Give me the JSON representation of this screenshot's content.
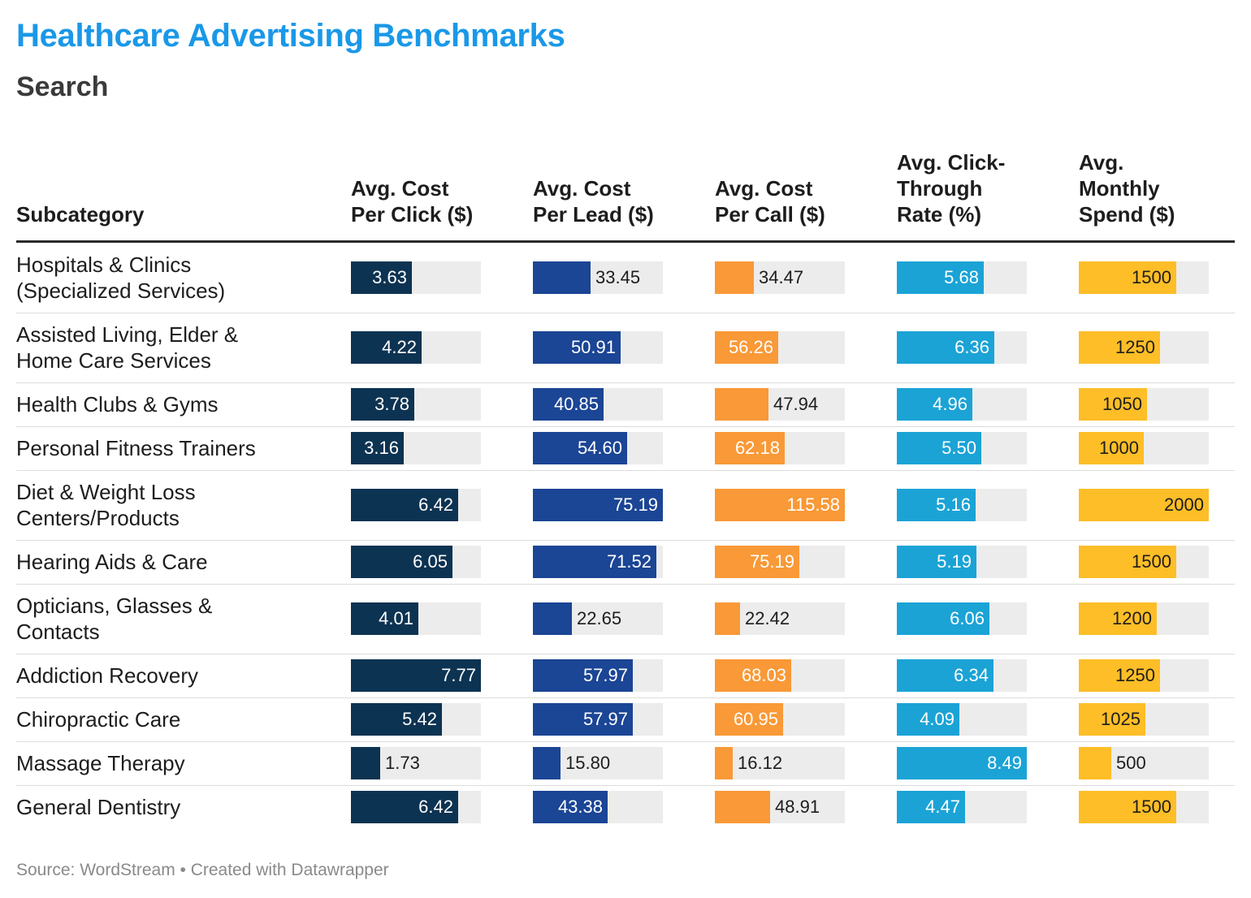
{
  "title": "Healthcare Advertising Benchmarks",
  "subtitle": "Search",
  "source": "Source: WordStream • Created with Datawrapper",
  "chart_data": {
    "type": "table",
    "row_header": "Subcategory",
    "columns": [
      {
        "key": "cpc",
        "label": "Avg. Cost\nPer Click ($)",
        "color": "#0d3352",
        "max": 7.77
      },
      {
        "key": "cpl",
        "label": "Avg. Cost\nPer Lead ($)",
        "color": "#1b4595",
        "max": 75.19
      },
      {
        "key": "cpcall",
        "label": "Avg. Cost\nPer Call ($)",
        "color": "#f99937",
        "max": 115.58
      },
      {
        "key": "ctr",
        "label": "Avg. Click-\nThrough\nRate (%)",
        "color": "#1ba3d6",
        "max": 8.49
      },
      {
        "key": "spend",
        "label": "Avg.\nMonthly\nSpend ($)",
        "color": "#fdbe27",
        "max": 2000
      }
    ],
    "rows": [
      {
        "label": "Hospitals & Clinics\n(Specialized Services)",
        "values": [
          "3.63",
          "33.45",
          "34.47",
          "5.68",
          "1500"
        ]
      },
      {
        "label": "Assisted Living, Elder &\nHome Care Services",
        "values": [
          "4.22",
          "50.91",
          "56.26",
          "6.36",
          "1250"
        ]
      },
      {
        "label": "Health Clubs & Gyms",
        "values": [
          "3.78",
          "40.85",
          "47.94",
          "4.96",
          "1050"
        ]
      },
      {
        "label": "Personal Fitness Trainers",
        "values": [
          "3.16",
          "54.60",
          "62.18",
          "5.50",
          "1000"
        ]
      },
      {
        "label": "Diet & Weight Loss\nCenters/Products",
        "values": [
          "6.42",
          "75.19",
          "115.58",
          "5.16",
          "2000"
        ]
      },
      {
        "label": "Hearing Aids & Care",
        "values": [
          "6.05",
          "71.52",
          "75.19",
          "5.19",
          "1500"
        ]
      },
      {
        "label": "Opticians, Glasses &\nContacts",
        "values": [
          "4.01",
          "22.65",
          "22.42",
          "6.06",
          "1200"
        ]
      },
      {
        "label": "Addiction Recovery",
        "values": [
          "7.77",
          "57.97",
          "68.03",
          "6.34",
          "1250"
        ]
      },
      {
        "label": "Chiropractic Care",
        "values": [
          "5.42",
          "57.97",
          "60.95",
          "4.09",
          "1025"
        ]
      },
      {
        "label": "Massage Therapy",
        "values": [
          "1.73",
          "15.80",
          "16.12",
          "8.49",
          "500"
        ]
      },
      {
        "label": "General Dentistry",
        "values": [
          "6.42",
          "43.38",
          "48.91",
          "4.47",
          "1500"
        ]
      }
    ]
  }
}
